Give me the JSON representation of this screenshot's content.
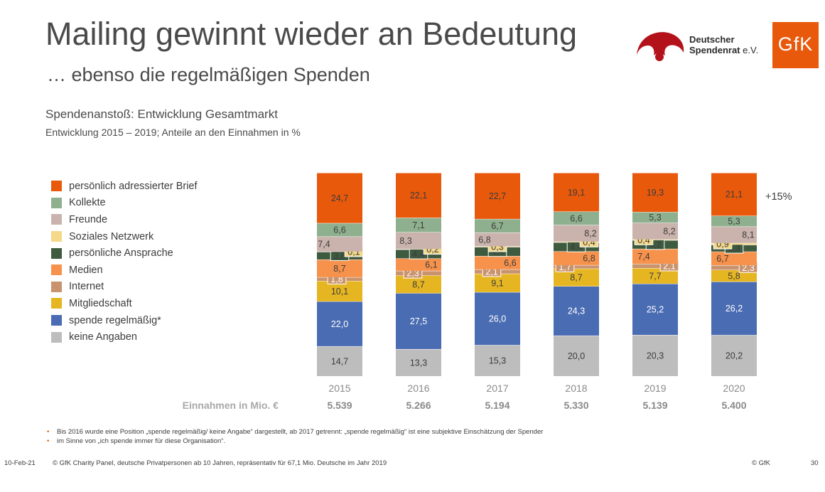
{
  "header": {
    "title": "Mailing gewinnt wieder an Bedeutung",
    "subtitle": "… ebenso die regelmäßigen Spenden"
  },
  "logos": {
    "spendenrat_line1": "Deutscher",
    "spendenrat_line2": "Spendenrat",
    "spendenrat_suffix": "e.V.",
    "gfk": "GfK",
    "spendenrat_color": "#b3121a",
    "gfk_color": "#e8590c"
  },
  "chart_heading": "Spendenanstoß: Entwicklung Gesamtmarkt",
  "chart_subheading": "Entwicklung 2015 – 2019; Anteile an den Einnahmen in %",
  "chart_data": {
    "type": "bar",
    "stacked": true,
    "categories": [
      "2015",
      "2016",
      "2017",
      "2018",
      "2019",
      "2020"
    ],
    "series": [
      {
        "name": "keine Angaben",
        "color": "#bdbdbd",
        "values": [
          14.7,
          13.3,
          15.3,
          20.0,
          20.3,
          20.2
        ]
      },
      {
        "name": "spende regelmäßig*",
        "color": "#4a6cb3",
        "values": [
          22.0,
          27.5,
          26.0,
          24.3,
          25.2,
          26.2
        ]
      },
      {
        "name": "Mitgliedschaft",
        "color": "#e6b622",
        "values": [
          10.1,
          8.7,
          9.1,
          8.7,
          7.7,
          5.8
        ]
      },
      {
        "name": "Internet",
        "color": "#c9936e",
        "values": [
          1.8,
          2.3,
          2.1,
          1.7,
          2.1,
          2.3
        ]
      },
      {
        "name": "Medien",
        "color": "#f7924c",
        "values": [
          8.7,
          6.1,
          6.6,
          6.8,
          7.4,
          6.7
        ]
      },
      {
        "name": "persönliche Ansprache",
        "color": "#3e5a3f",
        "values": [
          3.8,
          4.4,
          4.4,
          4.4,
          4.2,
          3.3
        ]
      },
      {
        "name": "Soziales Netzwerk",
        "color": "#f4d98a",
        "values": [
          0.1,
          0.2,
          0.3,
          0.4,
          0.4,
          0.9
        ]
      },
      {
        "name": "Freunde",
        "color": "#cbb3ad",
        "values": [
          7.4,
          8.3,
          6.8,
          8.2,
          8.2,
          8.1
        ]
      },
      {
        "name": "Kollekte",
        "color": "#8fb08f",
        "values": [
          6.6,
          7.1,
          6.7,
          6.6,
          5.3,
          5.3
        ]
      },
      {
        "name": "persönlich adressierter Brief",
        "color": "#e8590c",
        "values": [
          24.7,
          22.1,
          22.7,
          19.1,
          19.3,
          21.1
        ]
      }
    ],
    "legend_order": [
      "persönlich adressierter Brief",
      "Kollekte",
      "Freunde",
      "Soziales Netzwerk",
      "persönliche Ansprache",
      "Medien",
      "Internet",
      "Mitgliedschaft",
      "spende regelmäßig*",
      "keine Angaben"
    ],
    "legend_placement": "left",
    "value_labels": [
      "24,7",
      "6,6",
      "7,4",
      "0,1",
      "3,8",
      "8,7",
      "1,8",
      "10,1",
      "22,0",
      "14,7",
      "22,1",
      "7,1",
      "8,3",
      "0,2",
      "4,4",
      "6,1",
      "2,3",
      "8,7",
      "27,5",
      "13,3"
    ],
    "revenue_label": "Einnahmen in Mio. €",
    "revenue": [
      "5.539",
      "5.266",
      "5.194",
      "5.330",
      "5.139",
      "5.400"
    ],
    "annotation": "+15%",
    "ylim": [
      0,
      100
    ],
    "grid": false
  },
  "footnotes": [
    "Bis 2016 wurde eine Position „spende regelmäßig/  keine Angabe“ dargestellt, ab 2017 getrennt: „spende regelmäßig“ ist eine subjektive Einschätzung der Spender",
    "im Sinne von „ich spende immer für diese Organisation“."
  ],
  "footnote_bullet": "•",
  "footer": {
    "date": "10-Feb-21",
    "source": "© GfK Charity Panel, deutsche Privatpersonen ab 10 Jahren, repräsentativ für 67,1 Mio. Deutsche im Jahr 2019",
    "copyright": "© GfK",
    "page": "30"
  }
}
